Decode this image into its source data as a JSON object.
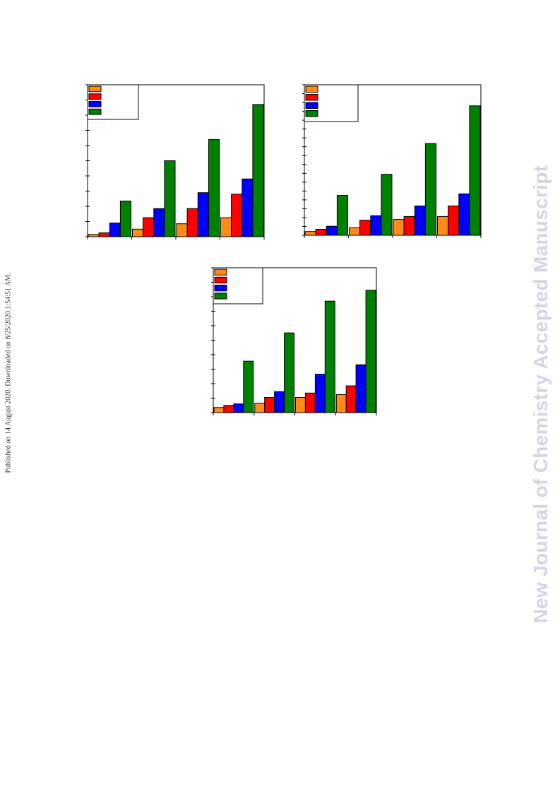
{
  "side_note": "Published on 14 August 2020. Downloaded on 8/25/2020 1:54:51 AM.",
  "watermark": "New Journal of Chemistry Accepted Manuscript",
  "colors": {
    "orange": "#ff8c1a",
    "red": "#ff0000",
    "blue": "#0000ff",
    "green": "#008000",
    "watermark": "#d4d4e6"
  },
  "chart_data": [
    {
      "type": "bar",
      "categories": [
        "",
        "",
        "",
        ""
      ],
      "ylim": [
        0,
        100
      ],
      "yticks": 10,
      "legend_position": "top-left",
      "series": [
        {
          "color": "orange",
          "values": [
            1.5,
            5,
            8.5,
            12.5
          ]
        },
        {
          "color": "red",
          "values": [
            2.5,
            12.5,
            18.5,
            28
          ]
        },
        {
          "color": "blue",
          "values": [
            9,
            18.5,
            29,
            38
          ]
        },
        {
          "color": "green",
          "values": [
            23.5,
            50,
            64,
            87
          ]
        }
      ]
    },
    {
      "type": "bar",
      "categories": [
        "",
        "",
        "",
        ""
      ],
      "ylim": [
        0,
        100
      ],
      "yticks": 17,
      "legend_position": "top-left",
      "series": [
        {
          "color": "orange",
          "values": [
            2.5,
            5,
            10.5,
            12.5
          ]
        },
        {
          "color": "red",
          "values": [
            4,
            10,
            12.5,
            19.5
          ]
        },
        {
          "color": "blue",
          "values": [
            6,
            13,
            19.5,
            27.5
          ]
        },
        {
          "color": "green",
          "values": [
            26.5,
            40.5,
            61,
            86
          ]
        }
      ]
    },
    {
      "type": "bar",
      "categories": [
        "",
        "",
        "",
        ""
      ],
      "ylim": [
        0,
        100
      ],
      "yticks": 10,
      "legend_position": "top-left",
      "series": [
        {
          "color": "orange",
          "values": [
            3.5,
            6.5,
            10.5,
            12.5
          ]
        },
        {
          "color": "red",
          "values": [
            5,
            10.5,
            13.5,
            18.5
          ]
        },
        {
          "color": "blue",
          "values": [
            6,
            14.5,
            26.5,
            33
          ]
        },
        {
          "color": "green",
          "values": [
            35.5,
            55,
            77,
            84.5
          ]
        }
      ]
    }
  ]
}
